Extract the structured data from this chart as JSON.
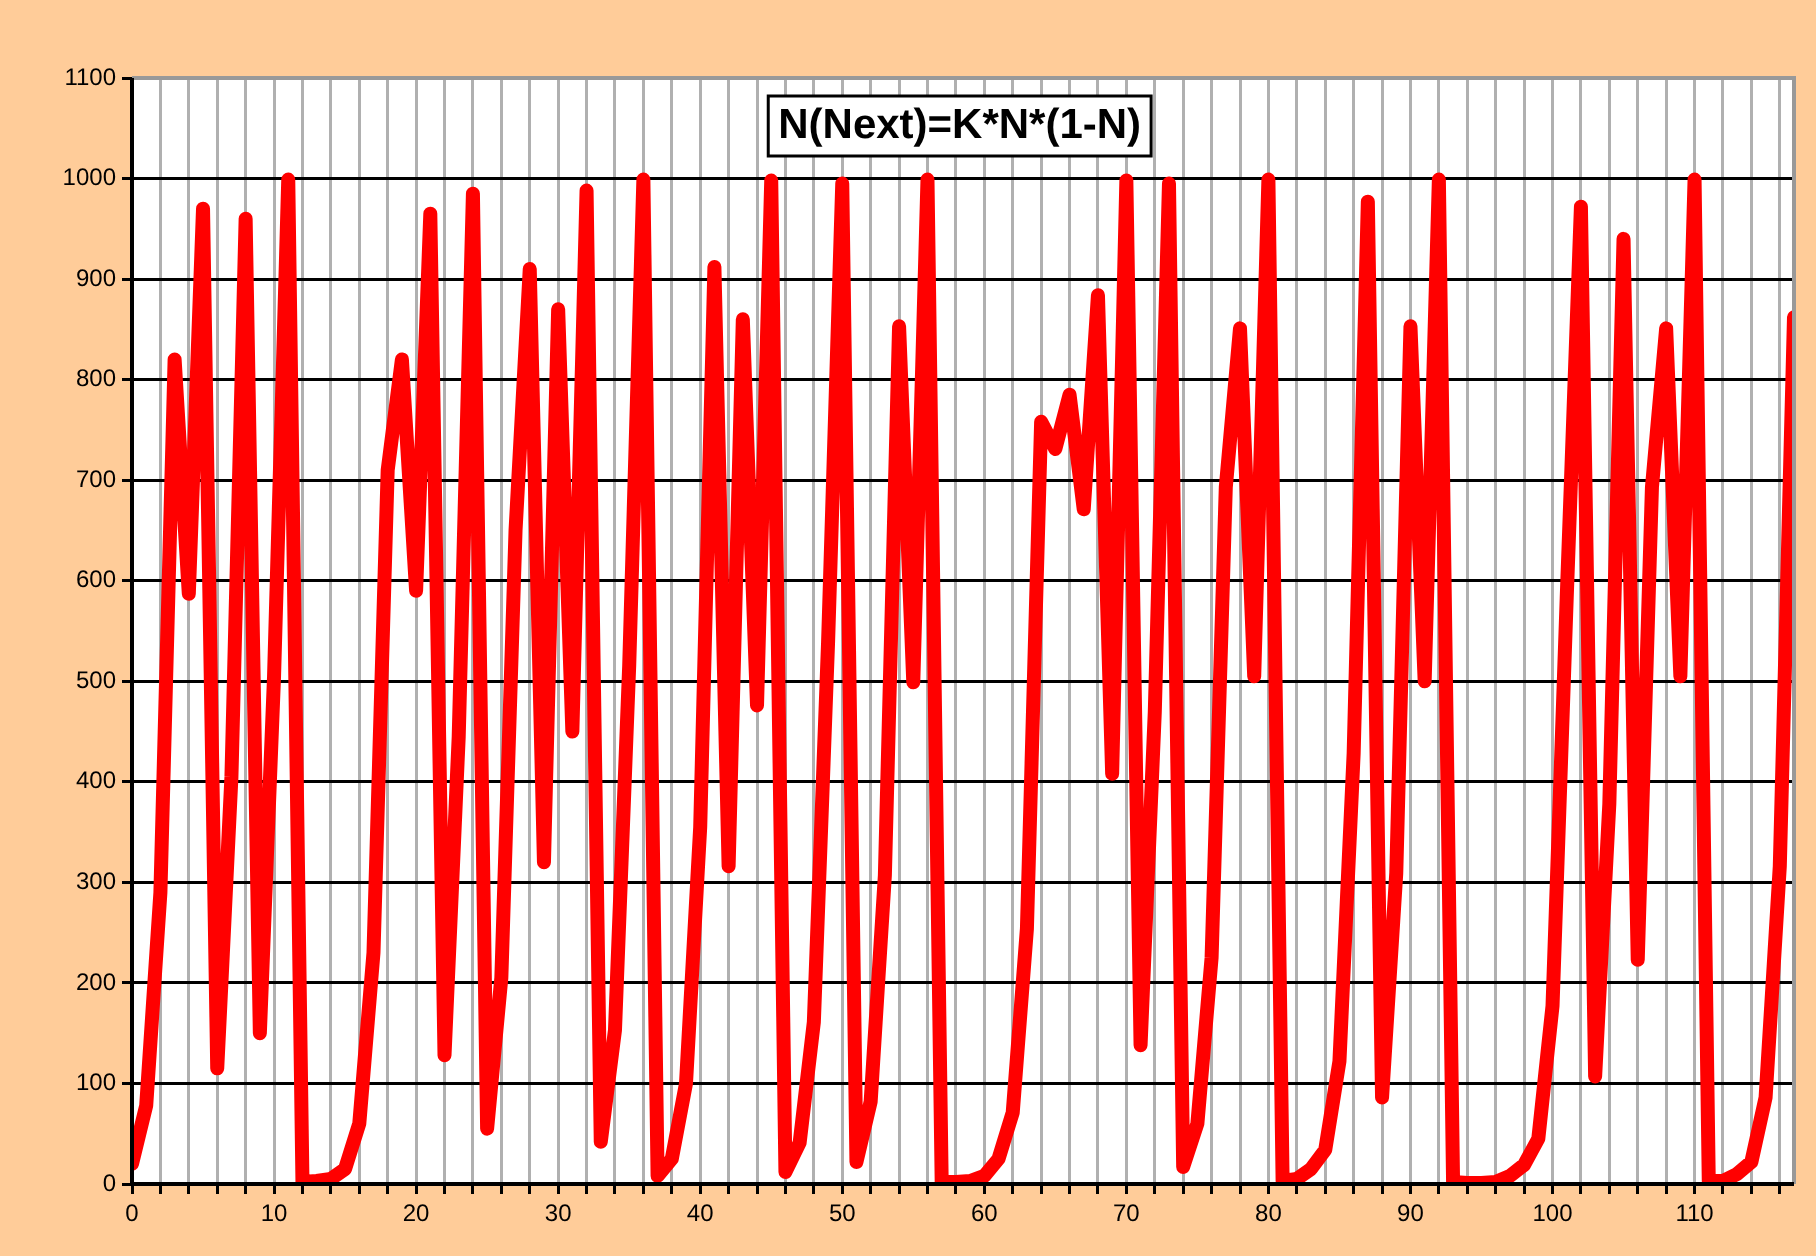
{
  "chart_data": {
    "type": "line",
    "title": "N(Next)=K*N*(1-N)",
    "x": [
      0,
      1,
      2,
      3,
      4,
      5,
      6,
      7,
      8,
      9,
      10,
      11,
      12,
      13,
      14,
      15,
      16,
      17,
      18,
      19,
      20,
      21,
      22,
      23,
      24,
      25,
      26,
      27,
      28,
      29,
      30,
      31,
      32,
      33,
      34,
      35,
      36,
      37,
      38,
      39,
      40,
      41,
      42,
      43,
      44,
      45,
      46,
      47,
      48,
      49,
      50,
      51,
      52,
      53,
      54,
      55,
      56,
      57,
      58,
      59,
      60,
      61,
      62,
      63,
      64,
      65,
      66,
      67,
      68,
      69,
      70,
      71,
      72,
      73,
      74,
      75,
      76,
      77,
      78,
      79,
      80,
      81,
      82,
      83,
      84,
      85,
      86,
      87,
      88,
      89,
      90,
      91,
      92,
      93,
      94,
      95,
      96,
      97,
      98,
      99,
      100,
      101,
      102,
      103,
      104,
      105,
      106,
      107,
      108,
      109,
      110,
      111,
      112,
      113,
      114,
      115,
      116,
      117
    ],
    "series": [
      {
        "color": "#ff0000",
        "values": [
          20,
          78,
          290,
          820,
          587,
          970,
          115,
          405,
          960,
          150,
          505,
          999,
          2,
          3,
          5,
          15,
          60,
          230,
          710,
          820,
          590,
          965,
          128,
          445,
          985,
          55,
          205,
          650,
          910,
          320,
          870,
          450,
          988,
          42,
          153,
          515,
          999,
          8,
          25,
          100,
          355,
          912,
          316,
          860,
          476,
          998,
          12,
          41,
          161,
          538,
          995,
          22,
          82,
          307,
          853,
          499,
          999,
          2,
          2,
          3,
          8,
          25,
          71,
          254,
          758,
          731,
          785,
          671,
          884,
          408,
          998,
          138,
          469,
          995,
          17,
          60,
          225,
          693,
          851,
          505,
          999,
          3,
          5,
          15,
          34,
          122,
          428,
          977,
          86,
          309,
          853,
          500,
          999,
          2,
          1,
          1,
          2,
          8,
          19,
          45,
          177,
          583,
          972,
          107,
          378,
          940,
          223,
          693,
          851,
          505,
          999,
          3,
          3,
          10,
          22,
          86,
          316,
          862
        ]
      }
    ],
    "xlim": [
      0,
      117
    ],
    "xticks": [
      0,
      {
        "value": 2,
        "label": null
      },
      {
        "value": 4,
        "label": null
      },
      {
        "value": 6,
        "label": null
      },
      {
        "value": 8,
        "label": null
      },
      10,
      {
        "value": 12,
        "label": null
      },
      {
        "value": 14,
        "label": null
      },
      {
        "value": 16,
        "label": null
      },
      {
        "value": 18,
        "label": null
      },
      20,
      {
        "value": 22,
        "label": null
      },
      {
        "value": 24,
        "label": null
      },
      {
        "value": 26,
        "label": null
      },
      {
        "value": 28,
        "label": null
      },
      30,
      {
        "value": 32,
        "label": null
      },
      {
        "value": 34,
        "label": null
      },
      {
        "value": 36,
        "label": null
      },
      {
        "value": 38,
        "label": null
      },
      40,
      {
        "value": 42,
        "label": null
      },
      {
        "value": 44,
        "label": null
      },
      {
        "value": 46,
        "label": null
      },
      {
        "value": 48,
        "label": null
      },
      50,
      {
        "value": 52,
        "label": null
      },
      {
        "value": 54,
        "label": null
      },
      {
        "value": 56,
        "label": null
      },
      {
        "value": 58,
        "label": null
      },
      60,
      {
        "value": 62,
        "label": null
      },
      {
        "value": 64,
        "label": null
      },
      {
        "value": 66,
        "label": null
      },
      {
        "value": 68,
        "label": null
      },
      70,
      {
        "value": 72,
        "label": null
      },
      {
        "value": 74,
        "label": null
      },
      {
        "value": 76,
        "label": null
      },
      {
        "value": 78,
        "label": null
      },
      80,
      {
        "value": 82,
        "label": null
      },
      {
        "value": 84,
        "label": null
      },
      {
        "value": 86,
        "label": null
      },
      {
        "value": 88,
        "label": null
      },
      90,
      {
        "value": 92,
        "label": null
      },
      {
        "value": 94,
        "label": null
      },
      {
        "value": 96,
        "label": null
      },
      {
        "value": 98,
        "label": null
      },
      100,
      {
        "value": 102,
        "label": null
      },
      {
        "value": 104,
        "label": null
      },
      {
        "value": 106,
        "label": null
      },
      {
        "value": 108,
        "label": null
      },
      110,
      {
        "value": 112,
        "label": null
      },
      {
        "value": 114,
        "label": null
      },
      {
        "value": 116,
        "label": null
      }
    ],
    "ylim": [
      0,
      1100
    ],
    "yticks": [
      0,
      100,
      200,
      300,
      400,
      500,
      600,
      700,
      800,
      900,
      1000,
      1100
    ],
    "grid": true,
    "legend": false,
    "marker": "none",
    "line_style": "solid"
  }
}
